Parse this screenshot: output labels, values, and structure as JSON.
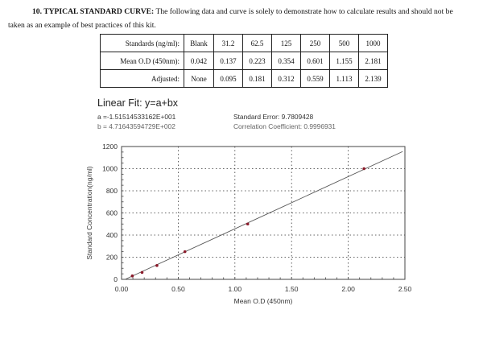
{
  "section": {
    "heading": "10. TYPICAL STANDARD CURVE:",
    "text_line1": " The following data and curve is solely to demonstrate how to calculate results and should not be",
    "text_line2": "taken as an example of best practices of this kit."
  },
  "table": {
    "rows": [
      {
        "label": "Standards (ng/ml):",
        "cells": [
          "Blank",
          "31.2",
          "62.5",
          "125",
          "250",
          "500",
          "1000"
        ]
      },
      {
        "label": "Mean O.D (450nm):",
        "cells": [
          "0.042",
          "0.137",
          "0.223",
          "0.354",
          "0.601",
          "1.155",
          "2.181"
        ]
      },
      {
        "label": "Adjusted:",
        "cells": [
          "None",
          "0.095",
          "0.181",
          "0.312",
          "0.559",
          "1.113",
          "2.139"
        ]
      }
    ]
  },
  "fit": {
    "title": "Linear Fit: y=a+bx",
    "a": "a =-1.51514533162E+001",
    "b": "b = 4.71643594729E+002",
    "std_error": "Standard Error: 9.7809428",
    "corr_coef": "Correlation Coefficient: 0.9996931"
  },
  "chart_data": {
    "type": "scatter",
    "title": "Linear Fit: y=a+bx",
    "xlabel": "Mean O.D (450nm)",
    "ylabel": "Standard Concentration(ng/ml)",
    "xlim": [
      0,
      2.5
    ],
    "ylim": [
      0,
      1200
    ],
    "x_ticks": [
      "0.00",
      "0.50",
      "1.00",
      "1.50",
      "2.00",
      "2.50"
    ],
    "y_ticks": [
      "0",
      "200",
      "400",
      "600",
      "800",
      "1000",
      "1200"
    ],
    "grid": true,
    "series": [
      {
        "name": "Standards",
        "x": [
          0.095,
          0.181,
          0.312,
          0.559,
          1.113,
          2.139
        ],
        "y": [
          31.2,
          62.5,
          125,
          250,
          500,
          1000
        ]
      }
    ],
    "fit_line": {
      "a": -15.1514533162,
      "b": 471.643594729,
      "x_range": [
        0.03,
        2.48
      ]
    },
    "colors": {
      "line": "#555555",
      "marker": "#8b1a2a",
      "grid": "#333333"
    }
  }
}
